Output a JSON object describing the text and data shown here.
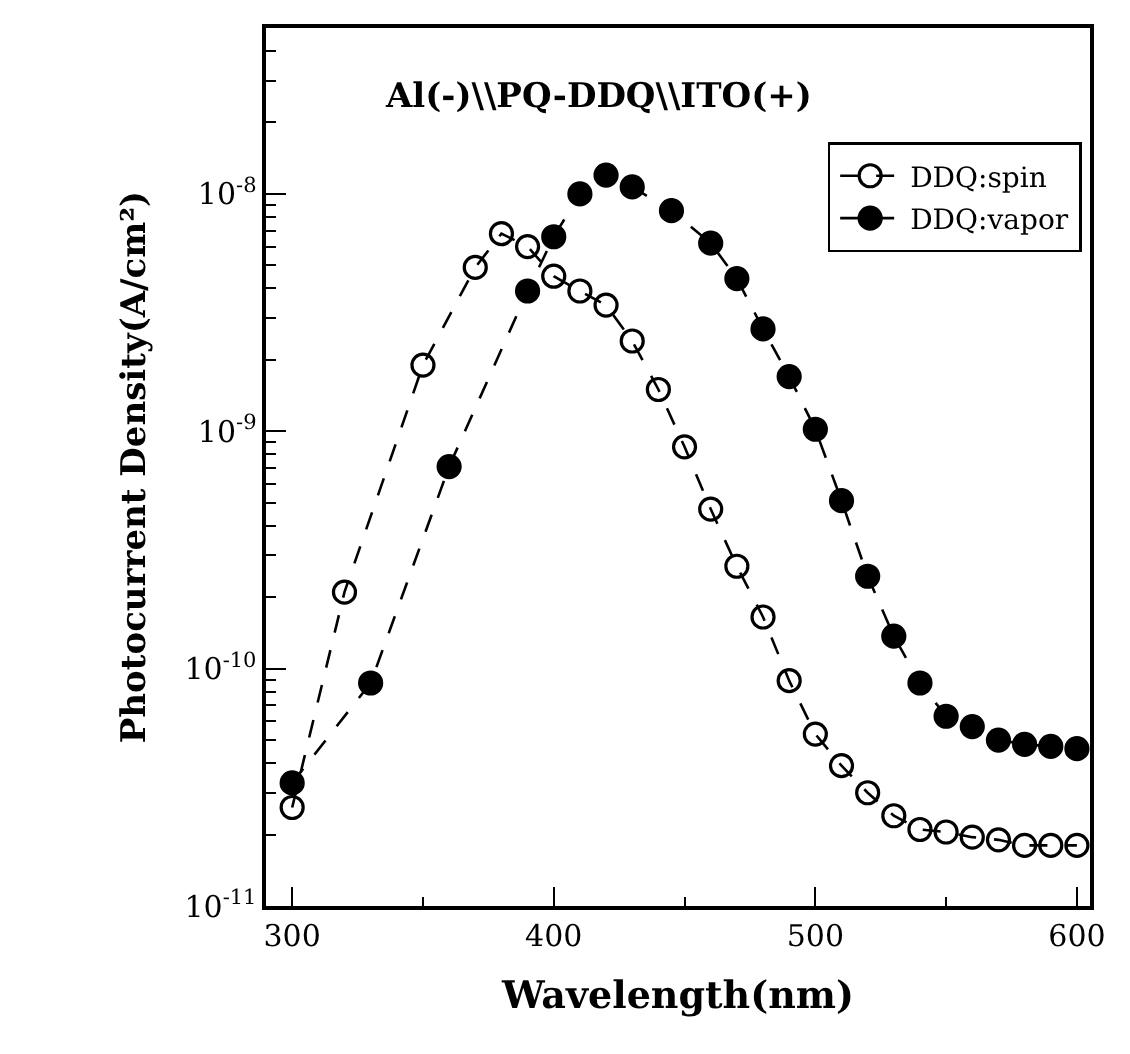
{
  "chart_data": {
    "type": "line",
    "title": "Al(-)\\\\PQ-DDQ\\\\ITO(+)",
    "xlabel": "Wavelength(nm)",
    "ylabel": "Photocurrent Density(A/cm²)",
    "log": "y",
    "legend": "top right",
    "line_style": "dashed",
    "xlim": [
      290,
      605
    ],
    "xticks": [
      300,
      {
        "value": 350,
        "label": null
      },
      400,
      {
        "value": 450,
        "label": null
      },
      500,
      {
        "value": 550,
        "label": null
      },
      600
    ],
    "ylim": [
      1e-11,
      5e-08
    ],
    "yticks": [
      {
        "value": 1e-11,
        "label": "10$^{-11}$"
      },
      {
        "value": 2e-11,
        "label": null
      },
      {
        "value": 3e-11,
        "label": null
      },
      {
        "value": 4e-11,
        "label": null
      },
      {
        "value": 5e-11,
        "label": null
      },
      {
        "value": 6e-11,
        "label": null
      },
      {
        "value": 7e-11,
        "label": null
      },
      {
        "value": 8e-11,
        "label": null
      },
      {
        "value": 9e-11,
        "label": null
      },
      {
        "value": 1e-10,
        "label": "10$^{-10}$"
      },
      {
        "value": 2e-10,
        "label": null
      },
      {
        "value": 3e-10,
        "label": null
      },
      {
        "value": 4e-10,
        "label": null
      },
      {
        "value": 5e-10,
        "label": null
      },
      {
        "value": 6e-10,
        "label": null
      },
      {
        "value": 7e-10,
        "label": null
      },
      {
        "value": 8e-10,
        "label": null
      },
      {
        "value": 9e-10,
        "label": null
      },
      {
        "value": 1e-09,
        "label": "10$^{-9}$"
      },
      {
        "value": 2e-09,
        "label": null
      },
      {
        "value": 3e-09,
        "label": null
      },
      {
        "value": 4e-09,
        "label": null
      },
      {
        "value": 5e-09,
        "label": null
      },
      {
        "value": 6e-09,
        "label": null
      },
      {
        "value": 7e-09,
        "label": null
      },
      {
        "value": 8e-09,
        "label": null
      },
      {
        "value": 9e-09,
        "label": null
      },
      {
        "value": 1e-08,
        "label": "10$^{-8}$"
      },
      {
        "value": 2e-08,
        "label": null
      },
      {
        "value": 3e-08,
        "label": null
      },
      {
        "value": 4e-08,
        "label": null
      }
    ],
    "series": [
      {
        "name": "DDQ:spin",
        "color": "#000000",
        "marker": "circle-open",
        "x": [
          300,
          320,
          350,
          370,
          380,
          390,
          400,
          410,
          420,
          430,
          440,
          450,
          460,
          470,
          480,
          490,
          500,
          510,
          520,
          530,
          540,
          550,
          560,
          570,
          580,
          590,
          600
        ],
        "values": [
          2.6e-11,
          2.1e-10,
          1.9e-09,
          4.9e-09,
          6.8e-09,
          6e-09,
          4.5e-09,
          3.9e-09,
          3.4e-09,
          2.4e-09,
          1.5e-09,
          8.6e-10,
          4.7e-10,
          2.7e-10,
          1.65e-10,
          8.9e-11,
          5.3e-11,
          3.9e-11,
          3e-11,
          2.4e-11,
          2.1e-11,
          2.05e-11,
          1.95e-11,
          1.9e-11,
          1.8e-11,
          1.8e-11,
          1.8e-11
        ]
      },
      {
        "name": "DDQ:vapor",
        "color": "#000000",
        "marker": "circle",
        "x": [
          300,
          330,
          360,
          390,
          400,
          410,
          420,
          430,
          445,
          460,
          470,
          480,
          490,
          500,
          510,
          520,
          530,
          540,
          550,
          560,
          570,
          580,
          590,
          600
        ],
        "values": [
          3.3e-11,
          8.7e-11,
          7.1e-10,
          3.9e-09,
          6.6e-09,
          1e-08,
          1.2e-08,
          1.07e-08,
          8.5e-09,
          6.2e-09,
          4.4e-09,
          2.7e-09,
          1.7e-09,
          1.02e-09,
          5.1e-10,
          2.45e-10,
          1.37e-10,
          8.7e-11,
          6.3e-11,
          5.7e-11,
          5e-11,
          4.8e-11,
          4.7e-11,
          4.6e-11
        ]
      }
    ]
  }
}
